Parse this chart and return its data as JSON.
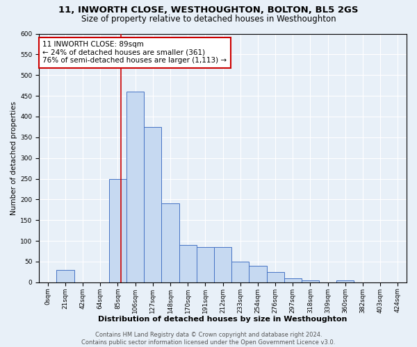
{
  "title": "11, INWORTH CLOSE, WESTHOUGHTON, BOLTON, BL5 2GS",
  "subtitle": "Size of property relative to detached houses in Westhoughton",
  "xlabel": "Distribution of detached houses by size in Westhoughton",
  "ylabel": "Number of detached properties",
  "footer_line1": "Contains HM Land Registry data © Crown copyright and database right 2024.",
  "footer_line2": "Contains public sector information licensed under the Open Government Licence v3.0.",
  "bin_labels": [
    "0sqm",
    "21sqm",
    "42sqm",
    "64sqm",
    "85sqm",
    "106sqm",
    "127sqm",
    "148sqm",
    "170sqm",
    "191sqm",
    "212sqm",
    "233sqm",
    "254sqm",
    "276sqm",
    "297sqm",
    "318sqm",
    "339sqm",
    "360sqm",
    "382sqm",
    "403sqm",
    "424sqm"
  ],
  "bar_values": [
    0,
    30,
    0,
    0,
    250,
    460,
    375,
    190,
    90,
    85,
    85,
    50,
    40,
    25,
    10,
    5,
    0,
    5,
    0,
    0,
    0
  ],
  "bar_color": "#c6d9f1",
  "bar_edge_color": "#4472c4",
  "vline_bin_index": 4.19,
  "annotation_text": "11 INWORTH CLOSE: 89sqm\n← 24% of detached houses are smaller (361)\n76% of semi-detached houses are larger (1,113) →",
  "annotation_box_color": "white",
  "annotation_box_edge_color": "#cc0000",
  "vline_color": "#cc0000",
  "ylim": [
    0,
    600
  ],
  "yticks": [
    0,
    50,
    100,
    150,
    200,
    250,
    300,
    350,
    400,
    450,
    500,
    550,
    600
  ],
  "bg_color": "#e8f0f8",
  "plot_bg_color": "#e8f0f8",
  "grid_color": "white",
  "title_fontsize": 9.5,
  "subtitle_fontsize": 8.5,
  "xlabel_fontsize": 8,
  "ylabel_fontsize": 7.5,
  "tick_fontsize": 6.5,
  "annotation_fontsize": 7.5,
  "footer_fontsize": 6.0
}
